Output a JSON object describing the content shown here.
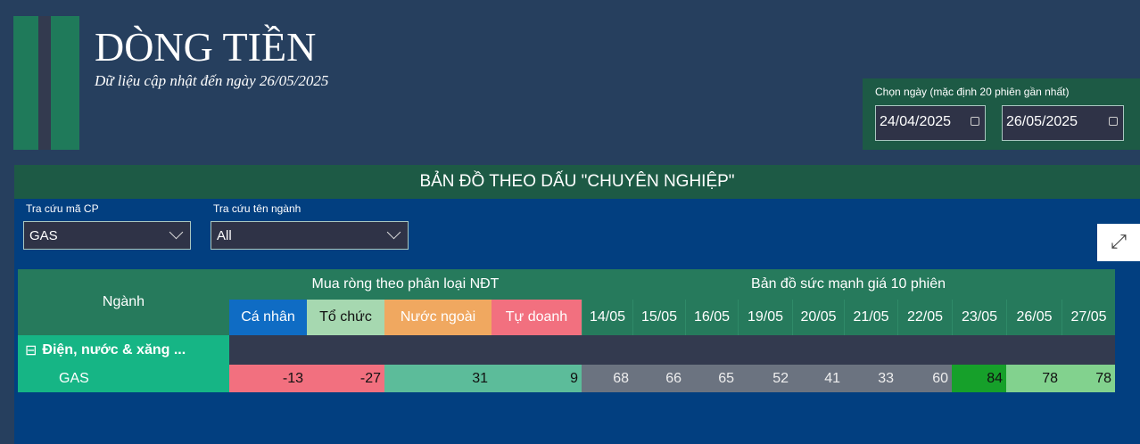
{
  "header": {
    "title": "DÒNG TIỀN",
    "subtitle": "Dữ liệu cập nhật đến ngày 26/05/2025"
  },
  "date_filter": {
    "label": "Chọn ngày (mặc định 20 phiên gần nhất)",
    "start": "24/04/2025",
    "end": "26/05/2025"
  },
  "panel": {
    "title": "BẢN ĐỒ THEO DẤU \"CHUYÊN NGHIỆP\"",
    "filters": [
      {
        "label": "Tra cứu mã CP",
        "value": "GAS"
      },
      {
        "label": "Tra cứu tên ngành",
        "value": "All"
      }
    ]
  },
  "table": {
    "col_sector": "Ngành",
    "group1": "Mua ròng theo phân loại NĐT",
    "group2": "Bản đồ sức mạnh giá 10 phiên",
    "investor_cols": [
      {
        "label": "Cá nhân",
        "color": "#0f6cc4"
      },
      {
        "label": "Tổ chức",
        "color": "#a6d8b0"
      },
      {
        "label": "Nước ngoài",
        "color": "#f0a860"
      },
      {
        "label": "Tự doanh",
        "color": "#f2707f"
      }
    ],
    "date_cols": [
      "14/05",
      "15/05",
      "16/05",
      "19/05",
      "20/05",
      "21/05",
      "22/05",
      "23/05",
      "26/05",
      "27/05"
    ],
    "group_row": {
      "label": "Điện, nước & xăng ...",
      "expand_icon": "minus-square-icon"
    },
    "rows": [
      {
        "ticker": "GAS",
        "investor_values": [
          -13,
          -27,
          31,
          9
        ],
        "investor_colors": [
          "#f2707f",
          "#f2707f",
          "#5cbc9a",
          "#5cbc9a"
        ],
        "price_strength": [
          68,
          66,
          65,
          52,
          41,
          33,
          60,
          84,
          78,
          78
        ],
        "strength_colors": [
          "#6b7380",
          "#6b7380",
          "#6b7380",
          "#6b7380",
          "#6b7380",
          "#6b7380",
          "#6b7380",
          "#16a02a",
          "#82d28e",
          "#82d28e"
        ]
      }
    ]
  }
}
